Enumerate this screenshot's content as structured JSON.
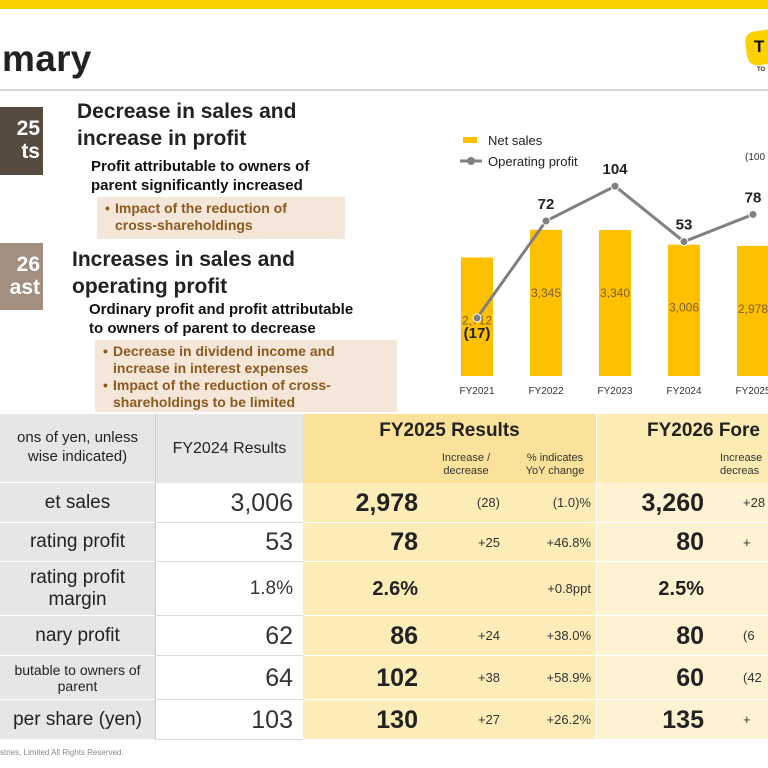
{
  "header": {
    "title": "mary",
    "logo_text": "T",
    "logo_sub": "TO"
  },
  "section_results": {
    "tag_lines": [
      "25",
      "ts"
    ],
    "heading_lines": [
      "Decrease in sales and",
      "increase in profit"
    ],
    "sub_lines": [
      "Profit attributable to owners of",
      "parent significantly increased"
    ],
    "bullets": [
      [
        "Impact of the reduction of",
        "cross-shareholdings"
      ]
    ]
  },
  "section_forecast": {
    "tag_lines": [
      "26",
      "ast"
    ],
    "heading_lines": [
      "Increases in sales and",
      "operating profit"
    ],
    "sub_lines": [
      "Ordinary profit and profit attributable",
      "to owners of parent to decrease"
    ],
    "bullets": [
      [
        "Decrease in dividend income and",
        "increase in interest expenses"
      ],
      [
        "Impact of the reduction of cross-",
        "shareholdings to be limited"
      ]
    ]
  },
  "chart_data": {
    "type": "bar+line",
    "unit_note": "(100",
    "categories": [
      "FY2021",
      "FY2022",
      "FY2023",
      "FY2024",
      "FY2025"
    ],
    "series": [
      {
        "name": "Net sales",
        "kind": "bar",
        "values": [
          2712,
          3345,
          3340,
          3006,
          2978
        ],
        "labels": [
          "2,712",
          "3,345",
          "3,340",
          "3,006",
          "2,978"
        ],
        "color": "#FFC000"
      },
      {
        "name": "Operating profit",
        "kind": "line",
        "values": [
          -17,
          72,
          104,
          53,
          78
        ],
        "labels": [
          "(17)",
          "72",
          "104",
          "53",
          "78"
        ],
        "color": "#808080"
      }
    ]
  },
  "table": {
    "header_label_lines": [
      "ons of yen, unless",
      "wise indicated)"
    ],
    "fy2024_header": "FY2024 Results",
    "fy2025_header": "FY2025 Results",
    "fy2025_sub_change": [
      "Increase /",
      "decrease"
    ],
    "fy2025_sub_pct": [
      "% indicates",
      "YoY change"
    ],
    "fy2026_header": "FY2026 Fore",
    "fy2026_sub_change": [
      "Increase",
      "decreas"
    ],
    "rows": [
      {
        "label": [
          "et sales"
        ],
        "fy2024": "3,006",
        "fy2025": "2,978",
        "chg": "(28)",
        "pct": "(1.0)%",
        "fy2026": "3,260",
        "chg26": "+28"
      },
      {
        "label": [
          "rating profit"
        ],
        "fy2024": "53",
        "fy2025": "78",
        "chg": "+25",
        "pct": "+46.8%",
        "fy2026": "80",
        "chg26": "+"
      },
      {
        "label": [
          "rating profit",
          "margin"
        ],
        "fy2024": "1.8%",
        "fy2025": "2.6%",
        "chg": "",
        "pct": "+0.8ppt",
        "fy2026": "2.5%",
        "chg26": ""
      },
      {
        "label": [
          "nary profit"
        ],
        "fy2024": "62",
        "fy2025": "86",
        "chg": "+24",
        "pct": "+38.0%",
        "fy2026": "80",
        "chg26": "(6"
      },
      {
        "label": [
          "butable to owners of",
          "parent"
        ],
        "fy2024": "64",
        "fy2025": "102",
        "chg": "+38",
        "pct": "+58.9%",
        "fy2026": "60",
        "chg26": "(42"
      },
      {
        "label": [
          "per share (yen)"
        ],
        "fy2024": "103",
        "fy2025": "130",
        "chg": "+27",
        "pct": "+26.2%",
        "fy2026": "135",
        "chg26": "+"
      }
    ]
  },
  "footer": "stries, Limited All Rights Reserved."
}
